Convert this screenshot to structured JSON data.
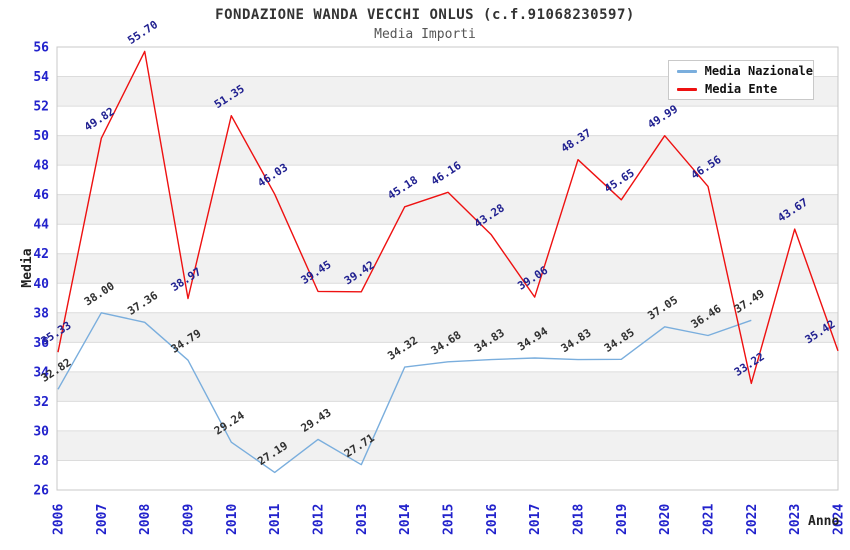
{
  "header": {
    "title": "FONDAZIONE WANDA VECCHI ONLUS (c.f.91068230597)",
    "subtitle": "Media Importi"
  },
  "legend": {
    "items": [
      {
        "label": "Media Nazionale",
        "color": "#7AAEDD"
      },
      {
        "label": "Media Ente",
        "color": "#EE1111"
      }
    ]
  },
  "axes": {
    "y_title": "Media",
    "x_title": "Anno",
    "y_ticks": [
      26,
      28,
      30,
      32,
      34,
      36,
      38,
      40,
      42,
      44,
      46,
      48,
      50,
      52,
      54,
      56
    ],
    "x_ticks": [
      "2006",
      "2007",
      "2008",
      "2009",
      "2010",
      "2011",
      "2012",
      "2013",
      "2014",
      "2015",
      "2016",
      "2017",
      "2018",
      "2019",
      "2020",
      "2021",
      "2022",
      "2023",
      "2024"
    ]
  },
  "colors": {
    "tick_label": "#2222CC",
    "grid": "#DCDCDC",
    "band": "#F1F1F1",
    "plot_border": "#C8C8C8",
    "nazionale_line": "#7AAEDD",
    "ente_line": "#EE1111",
    "nazionale_point_label": "#303030",
    "ente_point_label": "#202090"
  },
  "chart_data": {
    "type": "line",
    "title": "FONDAZIONE WANDA VECCHI ONLUS (c.f.91068230597)",
    "subtitle": "Media Importi",
    "xlabel": "Anno",
    "ylabel": "Media",
    "ylim": [
      26,
      56
    ],
    "grid_step": 2,
    "grid": true,
    "legend_position": "top-right",
    "x": [
      "2006",
      "2007",
      "2008",
      "2009",
      "2010",
      "2011",
      "2012",
      "2013",
      "2014",
      "2015",
      "2016",
      "2017",
      "2018",
      "2019",
      "2020",
      "2021",
      "2022",
      "2023",
      "2024"
    ],
    "series": [
      {
        "name": "Media Nazionale",
        "color": "#7AAEDD",
        "label_color": "#303030",
        "values": [
          32.82,
          38.0,
          37.36,
          34.79,
          29.24,
          27.19,
          29.43,
          27.71,
          34.32,
          34.68,
          34.83,
          34.94,
          34.83,
          34.85,
          37.05,
          36.46,
          37.49,
          null,
          null
        ]
      },
      {
        "name": "Media Ente",
        "color": "#EE1111",
        "label_color": "#202090",
        "values": [
          35.33,
          49.82,
          55.7,
          38.97,
          51.35,
          46.03,
          39.45,
          39.42,
          45.18,
          46.16,
          43.28,
          39.06,
          48.37,
          45.65,
          49.99,
          46.56,
          33.22,
          43.67,
          35.42
        ]
      }
    ]
  }
}
